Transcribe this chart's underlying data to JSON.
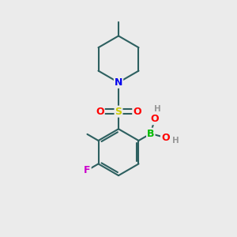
{
  "bg_color": "#ebebeb",
  "bond_color": "#2d6060",
  "bond_width": 1.5,
  "atom_colors": {
    "N": "#0000ee",
    "S": "#cccc00",
    "O": "#ff0000",
    "B": "#00bb00",
    "F": "#cc00cc",
    "H": "#999999",
    "C": "#2d6060"
  },
  "font_size_atom": 9,
  "font_size_H": 7.5
}
